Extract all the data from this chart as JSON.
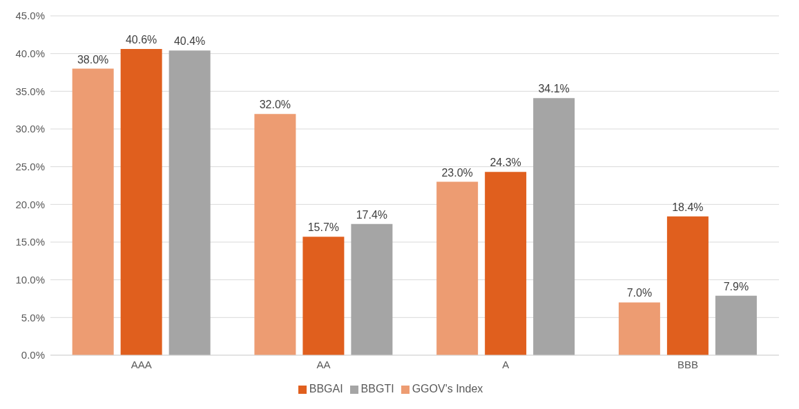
{
  "chart_data": {
    "type": "bar",
    "categories": [
      "AAA",
      "AA",
      "A",
      "BBB"
    ],
    "series": [
      {
        "name": "GGOV's Index",
        "color": "#ed9c72",
        "values": [
          38.0,
          32.0,
          23.0,
          7.0
        ],
        "value_labels": [
          "38.0%",
          "32.0%",
          "23.0%",
          "7.0%"
        ]
      },
      {
        "name": "BBGAI",
        "color": "#e05f1e",
        "values": [
          40.6,
          15.7,
          24.3,
          18.4
        ],
        "value_labels": [
          "40.6%",
          "15.7%",
          "24.3%",
          "18.4%"
        ]
      },
      {
        "name": "BBGTI",
        "color": "#a5a5a5",
        "values": [
          40.4,
          17.4,
          34.1,
          7.9
        ],
        "value_labels": [
          "40.4%",
          "17.4%",
          "34.1%",
          "7.9%"
        ]
      }
    ],
    "ylim": [
      0,
      45
    ],
    "yticks": [
      {
        "value": 0,
        "label": "0.0%"
      },
      {
        "value": 5,
        "label": "5.0%"
      },
      {
        "value": 10,
        "label": "10.0%"
      },
      {
        "value": 15,
        "label": "15.0%"
      },
      {
        "value": 20,
        "label": "20.0%"
      },
      {
        "value": 25,
        "label": "25.0%"
      },
      {
        "value": 30,
        "label": "30.0%"
      },
      {
        "value": 35,
        "label": "35.0%"
      },
      {
        "value": 40,
        "label": "40.0%"
      },
      {
        "value": 45,
        "label": "45.0%"
      }
    ],
    "grid": "y",
    "legend": "bottom"
  }
}
